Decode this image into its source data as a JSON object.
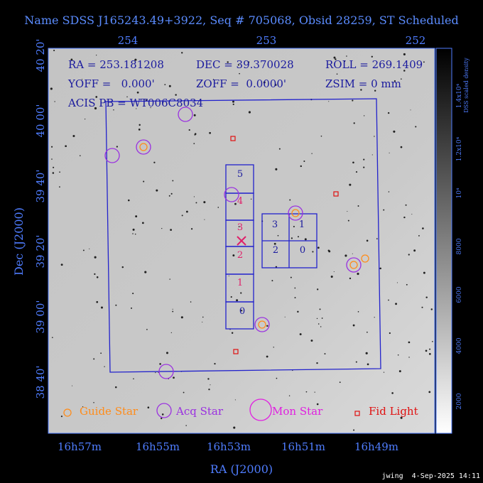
{
  "title": "Name SDSS J165243.49+3922, Seq # 705068, Obsid 28259, ST Scheduled",
  "info": {
    "ra": "RA = 253.181208",
    "dec": "DEC = 39.370028",
    "roll": "ROLL = 269.1409",
    "yoff": "YOFF =   0.000'",
    "zoff": "ZOFF =  0.0000'",
    "zsim": "ZSIM = 0 mm",
    "acis": "ACIS PB = WT006C8034"
  },
  "axes": {
    "top_ticks": [
      "254",
      "253",
      "252"
    ],
    "left_ticks": [
      "40 20'",
      "40 00'",
      "39 40'",
      "39 20'",
      "39 00'",
      "38 40'"
    ],
    "bottom_ticks": [
      "16h57m",
      "16h55m",
      "16h53m",
      "16h51m",
      "16h49m"
    ],
    "x_label": "RA (J2000)",
    "y_label": "Dec (J2000)"
  },
  "colorbar": {
    "ticks": [
      "2000",
      "4000",
      "6000",
      "8000",
      "10⁴",
      "1.2x10⁴",
      "1.4x10⁴"
    ],
    "label": "DSS scaled density"
  },
  "ccds": {
    "s_array": [
      "5",
      "4",
      "3",
      "2",
      "1",
      "0"
    ],
    "i_array": [
      "3",
      "1",
      "2",
      "0"
    ]
  },
  "legend": [
    "Guide Star",
    "Acq Star",
    "Mon Star",
    "Fid Light"
  ],
  "footer": "jwing  4-Sep-2025 14:11"
}
